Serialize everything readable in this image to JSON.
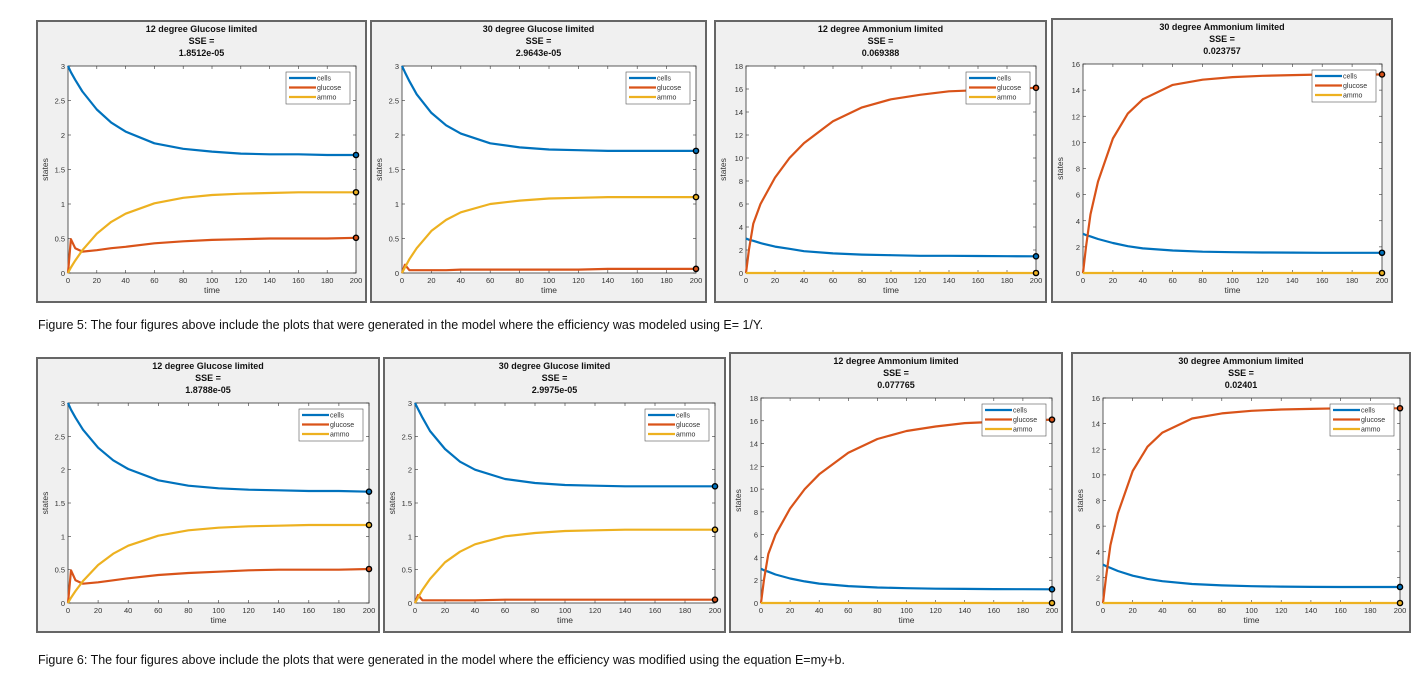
{
  "document": {
    "captions": [
      "Figure 5: The four figures above include the plots that were generated in the model where the efficiency was modeled using E= 1/Y.",
      "Figure 6: The four figures above include the plots that were generated in the model where the efficiency was modified using the equation E=my+b."
    ]
  },
  "colors": {
    "cells": "#0072BD",
    "glucose": "#D95319",
    "ammo": "#EDB120",
    "panel_bg": "#f0f0f0"
  },
  "chart_data": [
    {
      "type": "line",
      "title": [
        "12 degree Glucose limited",
        "SSE =",
        "1.8512e-05"
      ],
      "xlabel": "time",
      "ylabel": "states",
      "xlim": [
        0,
        200
      ],
      "ylim": [
        0,
        3
      ],
      "yticks": [
        0,
        0.5,
        1,
        1.5,
        2,
        2.5,
        3
      ],
      "xticks": [
        0,
        20,
        40,
        60,
        80,
        100,
        120,
        140,
        160,
        180,
        200
      ],
      "legend": "top-right",
      "x": [
        0,
        2,
        5,
        10,
        20,
        30,
        40,
        60,
        80,
        100,
        120,
        140,
        160,
        180,
        200
      ],
      "series": [
        {
          "name": "cells",
          "values": [
            3,
            2.91,
            2.8,
            2.63,
            2.37,
            2.18,
            2.05,
            1.88,
            1.8,
            1.76,
            1.73,
            1.72,
            1.72,
            1.71,
            1.71
          ]
        },
        {
          "name": "glucose",
          "values": [
            0,
            0.49,
            0.36,
            0.31,
            0.33,
            0.36,
            0.38,
            0.43,
            0.46,
            0.48,
            0.49,
            0.5,
            0.5,
            0.5,
            0.51
          ]
        },
        {
          "name": "ammo",
          "values": [
            0,
            0.08,
            0.18,
            0.33,
            0.57,
            0.74,
            0.86,
            1.01,
            1.09,
            1.13,
            1.15,
            1.16,
            1.17,
            1.17,
            1.17
          ]
        }
      ]
    },
    {
      "type": "line",
      "title": [
        "30 degree Glucose limited",
        "SSE =",
        "2.9643e-05"
      ],
      "xlabel": "time",
      "ylabel": "states",
      "xlim": [
        0,
        200
      ],
      "ylim": [
        0,
        3
      ],
      "yticks": [
        0,
        0.5,
        1,
        1.5,
        2,
        2.5,
        3
      ],
      "xticks": [
        0,
        20,
        40,
        60,
        80,
        100,
        120,
        140,
        160,
        180,
        200
      ],
      "legend": "top-right",
      "x": [
        0,
        2,
        5,
        10,
        20,
        30,
        40,
        60,
        80,
        100,
        120,
        140,
        160,
        180,
        200
      ],
      "series": [
        {
          "name": "cells",
          "values": [
            3,
            2.91,
            2.78,
            2.59,
            2.32,
            2.14,
            2.02,
            1.88,
            1.82,
            1.79,
            1.78,
            1.77,
            1.77,
            1.77,
            1.77
          ]
        },
        {
          "name": "glucose",
          "values": [
            0,
            0.12,
            0.04,
            0.04,
            0.04,
            0.04,
            0.05,
            0.05,
            0.05,
            0.05,
            0.05,
            0.06,
            0.06,
            0.06,
            0.06
          ]
        },
        {
          "name": "ammo",
          "values": [
            0,
            0.08,
            0.2,
            0.36,
            0.61,
            0.77,
            0.88,
            1,
            1.05,
            1.08,
            1.09,
            1.1,
            1.1,
            1.1,
            1.1
          ]
        }
      ]
    },
    {
      "type": "line",
      "title": [
        "12 degree Ammonium limited",
        "SSE =",
        "0.069388"
      ],
      "xlabel": "time",
      "ylabel": "states",
      "xlim": [
        0,
        200
      ],
      "ylim": [
        0,
        18
      ],
      "yticks": [
        0,
        2,
        4,
        6,
        8,
        10,
        12,
        14,
        16,
        18
      ],
      "xticks": [
        0,
        20,
        40,
        60,
        80,
        100,
        120,
        140,
        160,
        180,
        200
      ],
      "legend": "top-right",
      "x": [
        0,
        2,
        5,
        10,
        20,
        30,
        40,
        60,
        80,
        100,
        120,
        140,
        160,
        180,
        200
      ],
      "series": [
        {
          "name": "cells",
          "values": [
            3,
            2.9,
            2.8,
            2.6,
            2.3,
            2.1,
            1.9,
            1.7,
            1.6,
            1.55,
            1.5,
            1.5,
            1.48,
            1.46,
            1.45
          ]
        },
        {
          "name": "glucose",
          "values": [
            0,
            2,
            4.3,
            6,
            8.3,
            10,
            11.3,
            13.2,
            14.4,
            15.1,
            15.5,
            15.8,
            15.9,
            16,
            16.1
          ]
        },
        {
          "name": "ammo",
          "values": [
            0,
            0,
            0,
            0,
            0,
            0,
            0,
            0,
            0,
            0,
            0,
            0,
            0,
            0,
            0
          ]
        }
      ]
    },
    {
      "type": "line",
      "title": [
        "30 degree Ammonium limited",
        "SSE =",
        "0.023757"
      ],
      "xlabel": "time",
      "ylabel": "states",
      "xlim": [
        0,
        200
      ],
      "ylim": [
        0,
        16
      ],
      "yticks": [
        0,
        2,
        4,
        6,
        8,
        10,
        12,
        14,
        16
      ],
      "xticks": [
        0,
        20,
        40,
        60,
        80,
        100,
        120,
        140,
        160,
        180,
        200
      ],
      "legend": "top-right",
      "x": [
        0,
        2,
        5,
        10,
        20,
        30,
        40,
        60,
        80,
        100,
        120,
        140,
        160,
        180,
        200
      ],
      "series": [
        {
          "name": "cells",
          "values": [
            3,
            2.9,
            2.8,
            2.6,
            2.3,
            2.05,
            1.88,
            1.72,
            1.63,
            1.59,
            1.57,
            1.56,
            1.55,
            1.55,
            1.55
          ]
        },
        {
          "name": "glucose",
          "values": [
            0,
            2,
            4.5,
            7,
            10.3,
            12.2,
            13.3,
            14.4,
            14.8,
            15,
            15.1,
            15.15,
            15.2,
            15.2,
            15.2
          ]
        },
        {
          "name": "ammo",
          "values": [
            0,
            0,
            0,
            0,
            0,
            0,
            0,
            0,
            0,
            0,
            0,
            0,
            0,
            0,
            0
          ]
        }
      ]
    },
    {
      "type": "line",
      "title": [
        "12 degree Glucose limited",
        "SSE =",
        "1.8788e-05"
      ],
      "xlabel": "time",
      "ylabel": "states",
      "xlim": [
        0,
        200
      ],
      "ylim": [
        0,
        3
      ],
      "yticks": [
        0,
        0.5,
        1,
        1.5,
        2,
        2.5,
        3
      ],
      "xticks": [
        0,
        20,
        40,
        60,
        80,
        100,
        120,
        140,
        160,
        180,
        200
      ],
      "legend": "top-right",
      "x": [
        0,
        2,
        5,
        10,
        20,
        30,
        40,
        60,
        80,
        100,
        120,
        140,
        160,
        180,
        200
      ],
      "series": [
        {
          "name": "cells",
          "values": [
            3,
            2.9,
            2.78,
            2.6,
            2.33,
            2.14,
            2.01,
            1.84,
            1.76,
            1.72,
            1.7,
            1.69,
            1.68,
            1.68,
            1.67
          ]
        },
        {
          "name": "glucose",
          "values": [
            0,
            0.49,
            0.34,
            0.29,
            0.31,
            0.34,
            0.37,
            0.42,
            0.45,
            0.47,
            0.49,
            0.5,
            0.5,
            0.5,
            0.51
          ]
        },
        {
          "name": "ammo",
          "values": [
            0,
            0.08,
            0.18,
            0.33,
            0.57,
            0.74,
            0.86,
            1.01,
            1.09,
            1.13,
            1.15,
            1.16,
            1.17,
            1.17,
            1.17
          ]
        }
      ]
    },
    {
      "type": "line",
      "title": [
        "30 degree Glucose limited",
        "SSE =",
        "2.9975e-05"
      ],
      "xlabel": "time",
      "ylabel": "states",
      "xlim": [
        0,
        200
      ],
      "ylim": [
        0,
        3
      ],
      "yticks": [
        0,
        0.5,
        1,
        1.5,
        2,
        2.5,
        3
      ],
      "xticks": [
        0,
        20,
        40,
        60,
        80,
        100,
        120,
        140,
        160,
        180,
        200
      ],
      "legend": "top-right",
      "x": [
        0,
        2,
        5,
        10,
        20,
        30,
        40,
        60,
        80,
        100,
        120,
        140,
        160,
        180,
        200
      ],
      "series": [
        {
          "name": "cells",
          "values": [
            3,
            2.91,
            2.78,
            2.58,
            2.31,
            2.12,
            2,
            1.86,
            1.8,
            1.77,
            1.76,
            1.75,
            1.75,
            1.75,
            1.75
          ]
        },
        {
          "name": "glucose",
          "values": [
            0,
            0.12,
            0.04,
            0.04,
            0.04,
            0.04,
            0.04,
            0.05,
            0.05,
            0.05,
            0.05,
            0.05,
            0.05,
            0.05,
            0.05
          ]
        },
        {
          "name": "ammo",
          "values": [
            0,
            0.08,
            0.2,
            0.36,
            0.61,
            0.77,
            0.88,
            1,
            1.05,
            1.08,
            1.09,
            1.1,
            1.1,
            1.1,
            1.1
          ]
        }
      ]
    },
    {
      "type": "line",
      "title": [
        "12 degree Ammonium limited",
        "SSE =",
        "0.077765"
      ],
      "xlabel": "time",
      "ylabel": "states",
      "xlim": [
        0,
        200
      ],
      "ylim": [
        0,
        18
      ],
      "yticks": [
        0,
        2,
        4,
        6,
        8,
        10,
        12,
        14,
        16,
        18
      ],
      "xticks": [
        0,
        20,
        40,
        60,
        80,
        100,
        120,
        140,
        160,
        180,
        200
      ],
      "legend": "top-right",
      "x": [
        0,
        2,
        5,
        10,
        20,
        30,
        40,
        60,
        80,
        100,
        120,
        140,
        160,
        180,
        200
      ],
      "series": [
        {
          "name": "cells",
          "values": [
            3,
            2.88,
            2.75,
            2.5,
            2.15,
            1.9,
            1.7,
            1.48,
            1.36,
            1.3,
            1.26,
            1.24,
            1.22,
            1.21,
            1.2
          ]
        },
        {
          "name": "glucose",
          "values": [
            0,
            2,
            4.3,
            6,
            8.3,
            10,
            11.3,
            13.2,
            14.4,
            15.1,
            15.5,
            15.8,
            15.9,
            16,
            16.1
          ]
        },
        {
          "name": "ammo",
          "values": [
            0,
            0,
            0,
            0,
            0,
            0,
            0,
            0,
            0,
            0,
            0,
            0,
            0,
            0,
            0
          ]
        }
      ]
    },
    {
      "type": "line",
      "title": [
        "30 degree Ammonium limited",
        "SSE =",
        "0.02401"
      ],
      "xlabel": "time",
      "ylabel": "states",
      "xlim": [
        0,
        200
      ],
      "ylim": [
        0,
        16
      ],
      "yticks": [
        0,
        2,
        4,
        6,
        8,
        10,
        12,
        14,
        16
      ],
      "xticks": [
        0,
        20,
        40,
        60,
        80,
        100,
        120,
        140,
        160,
        180,
        200
      ],
      "legend": "top-right",
      "x": [
        0,
        2,
        5,
        10,
        20,
        30,
        40,
        60,
        80,
        100,
        120,
        140,
        160,
        180,
        200
      ],
      "series": [
        {
          "name": "cells",
          "values": [
            3,
            2.88,
            2.74,
            2.5,
            2.13,
            1.88,
            1.7,
            1.48,
            1.37,
            1.31,
            1.28,
            1.26,
            1.25,
            1.25,
            1.25
          ]
        },
        {
          "name": "glucose",
          "values": [
            0,
            2,
            4.5,
            7,
            10.3,
            12.2,
            13.3,
            14.4,
            14.8,
            15,
            15.1,
            15.15,
            15.2,
            15.2,
            15.2
          ]
        },
        {
          "name": "ammo",
          "values": [
            0,
            0,
            0,
            0,
            0,
            0,
            0,
            0,
            0,
            0,
            0,
            0,
            0,
            0,
            0
          ]
        }
      ]
    }
  ]
}
